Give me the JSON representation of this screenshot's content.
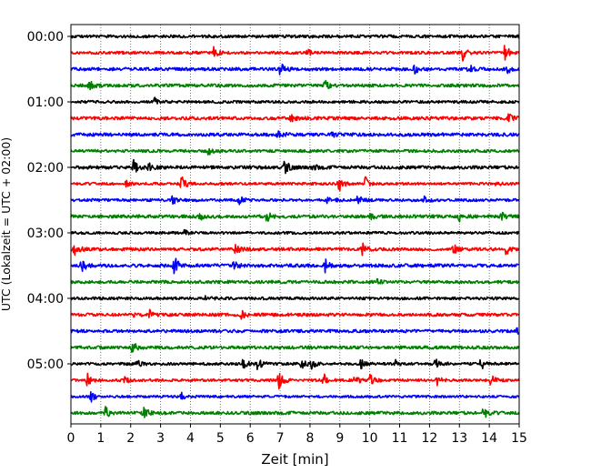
{
  "chart_data": {
    "type": "line",
    "title": "",
    "xlabel": "Zeit  [min]",
    "ylabel": "UTC (Lokalzeit = UTC + 02:00)",
    "xlim": [
      0,
      15
    ],
    "x_ticks": [
      0,
      1,
      2,
      3,
      4,
      5,
      6,
      7,
      8,
      9,
      10,
      11,
      12,
      13,
      14,
      15
    ],
    "x_tick_labels": [
      "0",
      "1",
      "2",
      "3",
      "4",
      "5",
      "6",
      "7",
      "8",
      "9",
      "10",
      "11",
      "12",
      "13",
      "14",
      "15"
    ],
    "y_tick_labels": [
      "00:00",
      "01:00",
      "02:00",
      "03:00",
      "04:00",
      "05:00"
    ],
    "trace_minutes": 15,
    "grid_x": true,
    "colors": [
      "#000000",
      "#ff0000",
      "#0000ff",
      "#008000"
    ],
    "series": [
      {
        "start": "00:00",
        "color": "#000000",
        "events": []
      },
      {
        "start": "00:15",
        "color": "#ff0000",
        "events": [
          [
            4.75,
            0.9
          ],
          [
            7.9,
            0.5
          ],
          [
            13.1,
            1.2
          ],
          [
            14.5,
            1.4
          ]
        ]
      },
      {
        "start": "00:30",
        "color": "#0000ff",
        "events": [
          [
            7.0,
            0.9
          ],
          [
            11.5,
            0.6
          ],
          [
            13.3,
            0.7
          ],
          [
            14.6,
            0.5
          ]
        ]
      },
      {
        "start": "00:45",
        "color": "#008000",
        "events": [
          [
            0.6,
            0.7
          ],
          [
            8.5,
            0.8
          ]
        ]
      },
      {
        "start": "01:00",
        "color": "#000000",
        "events": [
          [
            2.8,
            0.5
          ]
        ]
      },
      {
        "start": "01:15",
        "color": "#ff0000",
        "events": [
          [
            7.35,
            0.6
          ],
          [
            14.65,
            0.8
          ]
        ]
      },
      {
        "start": "01:30",
        "color": "#0000ff",
        "events": [
          [
            6.9,
            0.7
          ],
          [
            8.7,
            0.4
          ]
        ]
      },
      {
        "start": "01:45",
        "color": "#008000",
        "events": [
          [
            4.6,
            0.5
          ]
        ]
      },
      {
        "start": "02:00",
        "color": "#000000",
        "events": [
          [
            2.1,
            1.0
          ],
          [
            2.6,
            0.6
          ],
          [
            7.15,
            1.0
          ],
          [
            8.1,
            0.4
          ]
        ]
      },
      {
        "start": "02:15",
        "color": "#ff0000",
        "events": [
          [
            1.85,
            0.5
          ],
          [
            3.7,
            1.2
          ],
          [
            8.95,
            1.2
          ],
          [
            9.85,
            0.9
          ],
          [
            14.2,
            0.4
          ]
        ]
      },
      {
        "start": "02:30",
        "color": "#0000ff",
        "events": [
          [
            3.35,
            0.9
          ],
          [
            5.6,
            0.9
          ],
          [
            8.6,
            0.8
          ],
          [
            9.6,
            0.6
          ],
          [
            11.8,
            0.5
          ]
        ]
      },
      {
        "start": "02:45",
        "color": "#008000",
        "events": [
          [
            4.3,
            0.6
          ],
          [
            6.55,
            0.7
          ],
          [
            10.0,
            0.4
          ],
          [
            13.0,
            0.8
          ],
          [
            14.4,
            0.5
          ]
        ]
      },
      {
        "start": "03:00",
        "color": "#000000",
        "events": [
          [
            3.8,
            0.3
          ]
        ]
      },
      {
        "start": "03:15",
        "color": "#ff0000",
        "events": [
          [
            0.1,
            1.1
          ],
          [
            5.5,
            0.7
          ],
          [
            9.75,
            0.8
          ],
          [
            12.8,
            0.8
          ],
          [
            14.55,
            0.8
          ]
        ]
      },
      {
        "start": "03:30",
        "color": "#0000ff",
        "events": [
          [
            0.35,
            0.9
          ],
          [
            3.45,
            1.3
          ],
          [
            5.45,
            0.6
          ],
          [
            8.5,
            0.9
          ]
        ]
      },
      {
        "start": "03:45",
        "color": "#008000",
        "events": [
          [
            10.2,
            0.4
          ]
        ]
      },
      {
        "start": "04:00",
        "color": "#000000",
        "events": [
          [
            4.5,
            0.3
          ]
        ]
      },
      {
        "start": "04:15",
        "color": "#ff0000",
        "events": [
          [
            1.95,
            0.6
          ],
          [
            2.6,
            0.7
          ],
          [
            5.7,
            0.5
          ]
        ]
      },
      {
        "start": "04:30",
        "color": "#0000ff",
        "events": [
          [
            14.95,
            1.4
          ]
        ]
      },
      {
        "start": "04:45",
        "color": "#008000",
        "events": [
          [
            2.05,
            0.8
          ]
        ]
      },
      {
        "start": "05:00",
        "color": "#000000",
        "events": [
          [
            2.2,
            0.5
          ],
          [
            5.75,
            0.8
          ],
          [
            6.25,
            0.9
          ],
          [
            7.7,
            0.8
          ],
          [
            8.05,
            0.6
          ],
          [
            9.7,
            0.7
          ],
          [
            10.85,
            0.6
          ],
          [
            12.2,
            1.0
          ],
          [
            13.7,
            1.0
          ]
        ]
      },
      {
        "start": "05:15",
        "color": "#ff0000",
        "events": [
          [
            0.55,
            0.9
          ],
          [
            1.8,
            0.4
          ],
          [
            6.95,
            1.2
          ],
          [
            8.45,
            0.9
          ],
          [
            9.5,
            0.9
          ],
          [
            10.0,
            1.0
          ],
          [
            12.25,
            0.6
          ],
          [
            14.05,
            0.8
          ]
        ]
      },
      {
        "start": "05:30",
        "color": "#0000ff",
        "events": [
          [
            0.65,
            0.8
          ],
          [
            3.7,
            0.6
          ]
        ]
      },
      {
        "start": "05:45",
        "color": "#008000",
        "events": [
          [
            1.15,
            0.8
          ],
          [
            2.4,
            1.0
          ],
          [
            13.8,
            0.8
          ]
        ]
      }
    ]
  }
}
